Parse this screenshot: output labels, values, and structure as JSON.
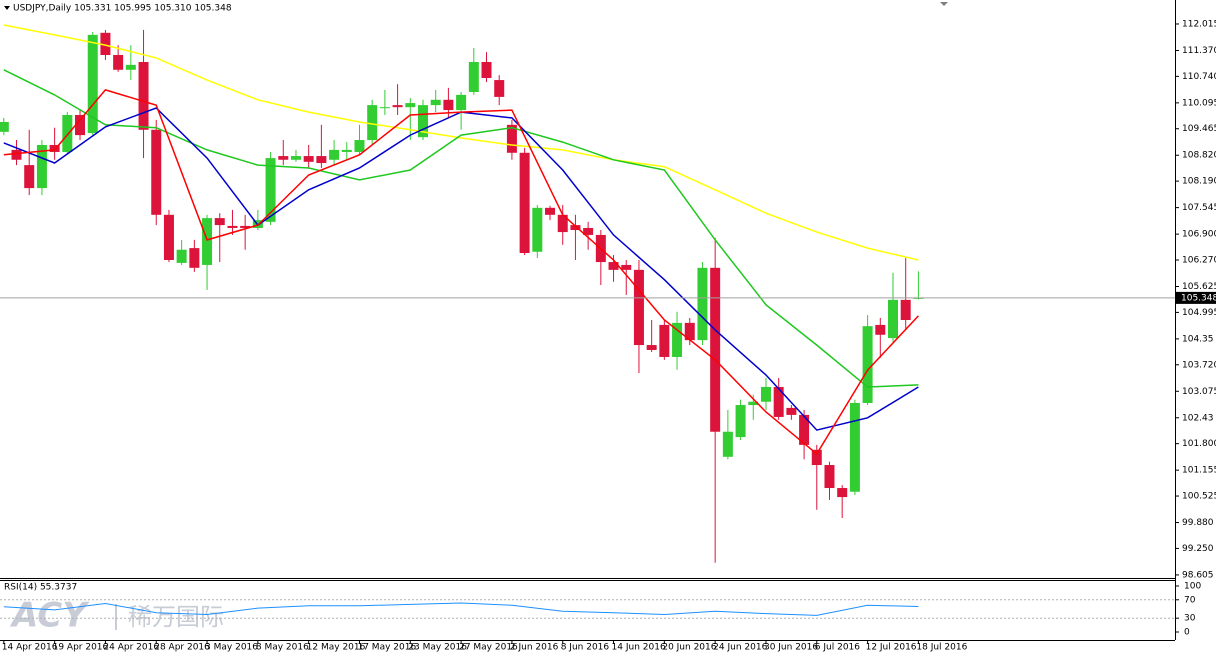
{
  "chart_data": {
    "type": "candlestick",
    "title": "USDJPY,Daily  105.331 105.995 105.310 105.348",
    "open": [
      109.39,
      108.95,
      108.58,
      108.02,
      109.07,
      108.9,
      109.8,
      109.36,
      111.8,
      111.26,
      110.9,
      111.09,
      109.44,
      107.37,
      106.2,
      106.56,
      106.15,
      107.29,
      107.1,
      107.1,
      107.05,
      107.2,
      108.8,
      108.71,
      108.8,
      108.8,
      108.71,
      108.9,
      108.9,
      109.19,
      109.97,
      110.04,
      109.99,
      109.26,
      110.04,
      110.17,
      109.92,
      110.36,
      111.09,
      110.65,
      109.56,
      108.88,
      106.47,
      107.54,
      107.37,
      107.12,
      107.05,
      106.88,
      106.22,
      106.15,
      106.03,
      104.2,
      104.69,
      103.91,
      104.74,
      104.32,
      106.08,
      101.48,
      101.96,
      102.74,
      102.82,
      103.18,
      102.67,
      102.5,
      101.65,
      101.28,
      100.72,
      100.63,
      102.79,
      104.69,
      104.37,
      105.3,
      105.331
    ],
    "high": [
      109.73,
      109.19,
      109.44,
      109.19,
      109.49,
      109.87,
      109.92,
      111.82,
      111.87,
      111.5,
      111.5,
      111.87,
      109.68,
      107.49,
      106.76,
      106.76,
      107.37,
      107.41,
      107.49,
      107.37,
      107.49,
      108.9,
      109.19,
      108.95,
      109.07,
      109.56,
      109.19,
      109.14,
      109.56,
      110.17,
      110.41,
      110.55,
      110.21,
      110.17,
      110.41,
      110.46,
      110.36,
      111.43,
      111.33,
      110.77,
      109.68,
      109.0,
      107.61,
      107.59,
      107.61,
      107.37,
      107.2,
      107.0,
      106.39,
      106.27,
      106.27,
      104.81,
      104.81,
      105.01,
      104.86,
      106.22,
      106.81,
      102.62,
      102.87,
      102.99,
      103.4,
      103.4,
      102.74,
      102.62,
      101.77,
      101.36,
      100.79,
      102.87,
      104.93,
      104.86,
      105.96,
      106.32,
      105.995
    ],
    "low": [
      109.31,
      108.58,
      107.85,
      107.85,
      108.71,
      108.83,
      109.19,
      109.31,
      111.14,
      110.85,
      110.65,
      108.75,
      107.12,
      106.22,
      106.15,
      105.98,
      105.54,
      106.22,
      106.88,
      106.52,
      107.0,
      107.12,
      108.58,
      108.66,
      108.51,
      108.51,
      108.58,
      108.71,
      108.83,
      109.07,
      109.8,
      109.8,
      109.19,
      109.19,
      109.87,
      109.73,
      109.44,
      110.29,
      110.6,
      110.04,
      108.71,
      106.39,
      106.32,
      107.24,
      106.64,
      106.27,
      106.52,
      105.66,
      105.74,
      105.42,
      103.52,
      104.03,
      103.84,
      103.6,
      104.2,
      104.2,
      98.9,
      101.42,
      101.89,
      102.38,
      102.62,
      102.38,
      102.38,
      101.42,
      100.19,
      100.43,
      99.99,
      100.55,
      102.74,
      103.89,
      104.28,
      104.57,
      105.31
    ],
    "close": [
      109.63,
      108.71,
      108.02,
      109.07,
      108.9,
      109.8,
      109.31,
      111.75,
      111.26,
      110.9,
      111.02,
      109.44,
      107.37,
      106.27,
      106.52,
      106.08,
      107.29,
      107.12,
      107.05,
      107.05,
      107.24,
      108.75,
      108.71,
      108.8,
      108.66,
      108.63,
      108.95,
      108.95,
      109.19,
      110.04,
      109.99,
      109.99,
      110.09,
      110.04,
      110.17,
      109.92,
      110.29,
      111.09,
      110.7,
      110.24,
      108.88,
      106.44,
      107.54,
      107.37,
      106.95,
      107.0,
      106.88,
      106.22,
      106.03,
      106.03,
      104.2,
      104.08,
      103.91,
      104.74,
      104.32,
      106.08,
      102.09,
      102.09,
      102.74,
      102.82,
      103.18,
      102.45,
      102.5,
      101.77,
      101.28,
      100.72,
      100.5,
      102.79,
      104.66,
      104.45,
      105.3,
      104.81,
      105.348
    ],
    "up_color": "#32cd32",
    "down_color": "#dc143c",
    "xlim": [
      -0.3,
      92.2
    ],
    "xticks": [
      {
        "value": 0,
        "label": "14 Apr 2016"
      },
      {
        "value": 4,
        "label": "19 Apr 2016"
      },
      {
        "value": 8,
        "label": "24 Apr 2016"
      },
      {
        "value": 12,
        "label": "28 Apr 2016"
      },
      {
        "value": 16,
        "label": "3 May 2016"
      },
      {
        "value": 20,
        "label": "8 May 2016"
      },
      {
        "value": 24,
        "label": "12 May 2016"
      },
      {
        "value": 28,
        "label": "17 May 2016"
      },
      {
        "value": 32,
        "label": "23 May 2016"
      },
      {
        "value": 36,
        "label": "27 May 2016"
      },
      {
        "value": 40,
        "label": "2 Jun 2016"
      },
      {
        "value": 44,
        "label": "8 Jun 2016"
      },
      {
        "value": 48,
        "label": "14 Jun 2016"
      },
      {
        "value": 52,
        "label": "20 Jun 2016"
      },
      {
        "value": 56,
        "label": "24 Jun 2016"
      },
      {
        "value": 60,
        "label": "30 Jun 2016"
      },
      {
        "value": 64,
        "label": "6 Jul 2016"
      },
      {
        "value": 68,
        "label": "12 Jul 2016"
      },
      {
        "value": 72,
        "label": "18 Jul 2016"
      }
    ],
    "ylim": [
      98.53,
      112.55
    ],
    "yticks": [
      112.015,
      {
        "value": 111.37,
        "label": "111.370"
      },
      {
        "value": 110.74,
        "label": "110.740"
      },
      110.095,
      109.465,
      {
        "value": 108.82,
        "label": "108.820"
      },
      {
        "value": 108.19,
        "label": "108.190"
      },
      107.545,
      {
        "value": 106.9,
        "label": "106.900"
      },
      {
        "value": 106.27,
        "label": "106.270"
      },
      105.625,
      104.995,
      104.35,
      {
        "value": 103.72,
        "label": "103.720"
      },
      103.075,
      102.43,
      {
        "value": 101.8,
        "label": "101.800"
      },
      101.155,
      100.525,
      {
        "value": 99.88,
        "label": "99.880"
      },
      {
        "value": 99.25,
        "label": "99.250"
      },
      98.605
    ],
    "series": [
      {
        "color": "#ffff00",
        "x": [
          0,
          4,
          8,
          12,
          16,
          20,
          24,
          28,
          32,
          36,
          40,
          44,
          48,
          52,
          56,
          60,
          64,
          68,
          72
        ],
        "values": [
          111.99,
          111.75,
          111.5,
          111.19,
          110.65,
          110.17,
          109.87,
          109.63,
          109.44,
          109.24,
          109.07,
          108.95,
          108.71,
          108.54,
          107.98,
          107.41,
          106.95,
          106.56,
          106.27
        ]
      },
      {
        "color": "#1ec81e",
        "x": [
          0,
          4,
          8,
          12,
          16,
          20,
          24,
          28,
          32,
          36,
          40,
          44,
          48,
          52,
          56,
          60,
          64,
          68,
          72
        ],
        "values": [
          110.9,
          110.29,
          109.56,
          109.49,
          108.95,
          108.58,
          108.51,
          108.22,
          108.46,
          109.31,
          109.49,
          109.14,
          108.71,
          108.46,
          106.76,
          105.18,
          104.2,
          103.18,
          103.23
        ]
      },
      {
        "color": "#0000cd",
        "x": [
          0,
          4,
          8,
          12,
          16,
          20,
          24,
          28,
          32,
          36,
          40,
          44,
          48,
          52,
          56,
          60,
          64,
          68,
          72
        ],
        "values": [
          109.12,
          108.63,
          109.51,
          109.97,
          108.75,
          107.12,
          107.98,
          108.51,
          109.31,
          109.87,
          109.73,
          108.46,
          106.88,
          105.79,
          104.57,
          103.47,
          102.13,
          102.43,
          103.18
        ]
      },
      {
        "color": "#ff0000",
        "x": [
          0,
          4,
          8,
          12,
          16,
          20,
          24,
          28,
          32,
          36,
          40,
          44,
          48,
          52,
          56,
          60,
          64,
          68,
          72
        ],
        "values": [
          108.83,
          108.95,
          110.41,
          110.04,
          106.76,
          107.12,
          108.34,
          108.83,
          109.8,
          109.87,
          109.92,
          107.37,
          106.27,
          104.81,
          103.84,
          102.57,
          101.55,
          103.59,
          104.91
        ]
      }
    ],
    "last_price": 105.348,
    "indicator": {
      "type": "line",
      "title": "RSI(14) 55.3737",
      "color": "#1e90ff",
      "x": [
        0,
        4,
        8,
        12,
        16,
        20,
        24,
        28,
        32,
        36,
        40,
        44,
        48,
        52,
        56,
        60,
        64,
        68,
        72
      ],
      "values": [
        55,
        48,
        62,
        42,
        38,
        52,
        57,
        57,
        60,
        63,
        58,
        45,
        42,
        38,
        45,
        40,
        36,
        58,
        55.3737
      ],
      "ylim": [
        -17.4,
        113
      ],
      "yticks": [
        100,
        70,
        30,
        0
      ],
      "levels": [
        70,
        30
      ]
    },
    "watermark": {
      "logo": "ACY",
      "text": "稀万国际"
    }
  }
}
